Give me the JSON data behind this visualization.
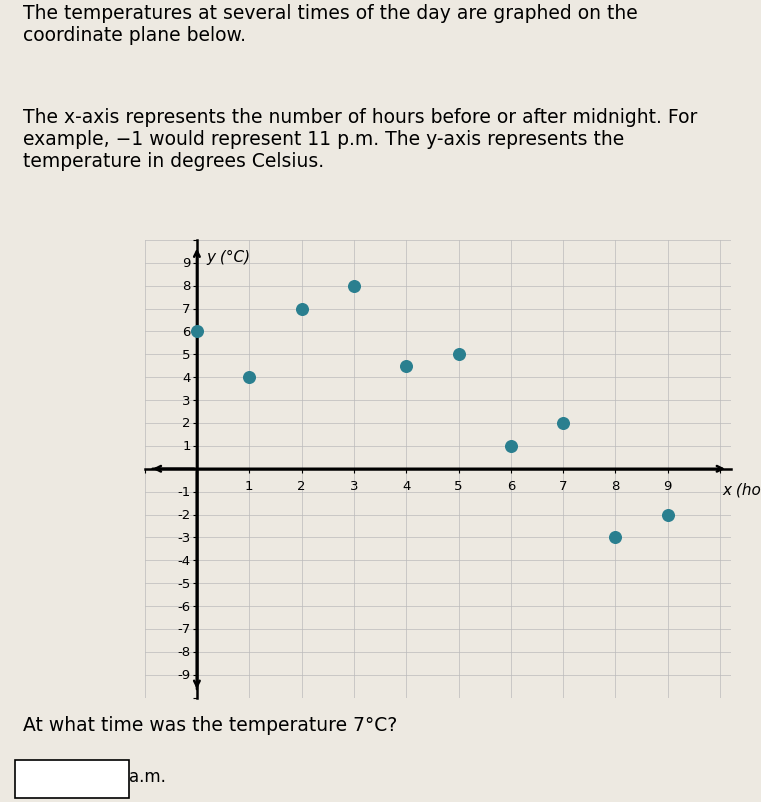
{
  "title_text": "The temperatures at several times of the day are graphed on the\ncoordinate plane below.",
  "paragraph1": "The x-axis represents the number of hours before or after midnight. For\nexample, −1 would represent 11 p.m. The y-axis represents the\ntemperature in degrees Celsius.",
  "question": "At what time was the temperature 7°C?",
  "answer_label": "a.m.",
  "points_x": [
    0,
    1,
    2,
    3,
    4,
    5,
    6,
    7,
    8,
    9
  ],
  "points_y": [
    6,
    4,
    7,
    8,
    4.5,
    5,
    1,
    2,
    -3,
    -2
  ],
  "dot_color": "#2a7f8f",
  "dot_size": 70,
  "xlim": [
    -1.0,
    10.2
  ],
  "ylim": [
    -9.8,
    9.8
  ],
  "xlabel": "x (hours)",
  "ylabel": "y (°C)",
  "grid_color": "#bbbbbb",
  "bg_color": "#ede9e1",
  "font_color": "#000000",
  "text_fontsize": 13.5,
  "question_fontsize": 13.5,
  "tick_fontsize": 9.5
}
